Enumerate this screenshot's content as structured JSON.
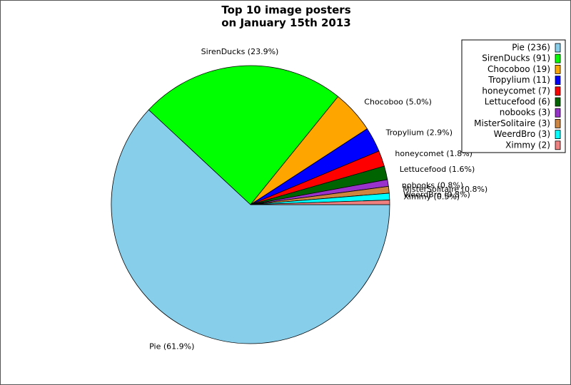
{
  "chart_data": {
    "type": "pie",
    "title": [
      "Top 10 image posters",
      "on January 15th 2013"
    ],
    "start_angle_deg": 0,
    "direction": "clockwise",
    "legend_position": "top-right",
    "slices": [
      {
        "name": "Pie",
        "count": 236,
        "percent": 61.9,
        "label": "Pie (61.9%)",
        "legend": "Pie (236)",
        "color": "#87ceeb"
      },
      {
        "name": "SirenDucks",
        "count": 91,
        "percent": 23.9,
        "label": "SirenDucks (23.9%)",
        "legend": "SirenDucks (91)",
        "color": "#00ff00"
      },
      {
        "name": "Chocoboo",
        "count": 19,
        "percent": 5.0,
        "label": "Chocoboo (5.0%)",
        "legend": "Chocoboo (19)",
        "color": "#ffa500"
      },
      {
        "name": "Tropylium",
        "count": 11,
        "percent": 2.9,
        "label": "Tropylium (2.9%)",
        "legend": "Tropylium (11)",
        "color": "#0000ff"
      },
      {
        "name": "honeycomet",
        "count": 7,
        "percent": 1.8,
        "label": "honeycomet (1.8%)",
        "legend": "honeycomet (7)",
        "color": "#ff0000"
      },
      {
        "name": "Lettucefood",
        "count": 6,
        "percent": 1.6,
        "label": "Lettucefood (1.6%)",
        "legend": "Lettucefood (6)",
        "color": "#006400"
      },
      {
        "name": "nobooks",
        "count": 3,
        "percent": 0.8,
        "label": "nobooks (0.8%)",
        "legend": "nobooks (3)",
        "color": "#9932cc"
      },
      {
        "name": "MisterSolitaire",
        "count": 3,
        "percent": 0.8,
        "label": "MisterSolitaire (0.8%)",
        "legend": "MisterSolitaire (3)",
        "color": "#cd853f"
      },
      {
        "name": "WeerdBro",
        "count": 3,
        "percent": 0.8,
        "label": "WeerdBro (0.8%)",
        "legend": "WeerdBro (3)",
        "color": "#00ffff"
      },
      {
        "name": "Ximmy",
        "count": 2,
        "percent": 0.5,
        "label": "Ximmy (0.5%)",
        "legend": "Ximmy (2)",
        "color": "#f08080"
      }
    ]
  }
}
